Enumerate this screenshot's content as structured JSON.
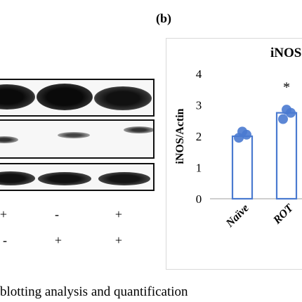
{
  "panel_label": "(b)",
  "blot": {
    "row1_signs": [
      "+",
      "-",
      "+"
    ],
    "row2_signs": [
      "-",
      "+",
      "+"
    ]
  },
  "caption_fragment": "blotting analysis and quantification",
  "chart_data": {
    "type": "bar",
    "title": "iNOS",
    "ylabel": "iNOS/Actin",
    "ylim": [
      0,
      4
    ],
    "yticks": [
      0,
      1,
      2,
      3,
      4
    ],
    "grid": false,
    "categories": [
      "Naïve",
      "ROT"
    ],
    "values": [
      2.0,
      2.75
    ],
    "points": [
      [
        1.95,
        2.05,
        2.15
      ],
      [
        2.55,
        2.75,
        2.85
      ]
    ],
    "annotations": [
      "",
      "*"
    ],
    "colors": {
      "bar_edge": "#4a7ad0",
      "point": "#4a7ad0"
    }
  }
}
